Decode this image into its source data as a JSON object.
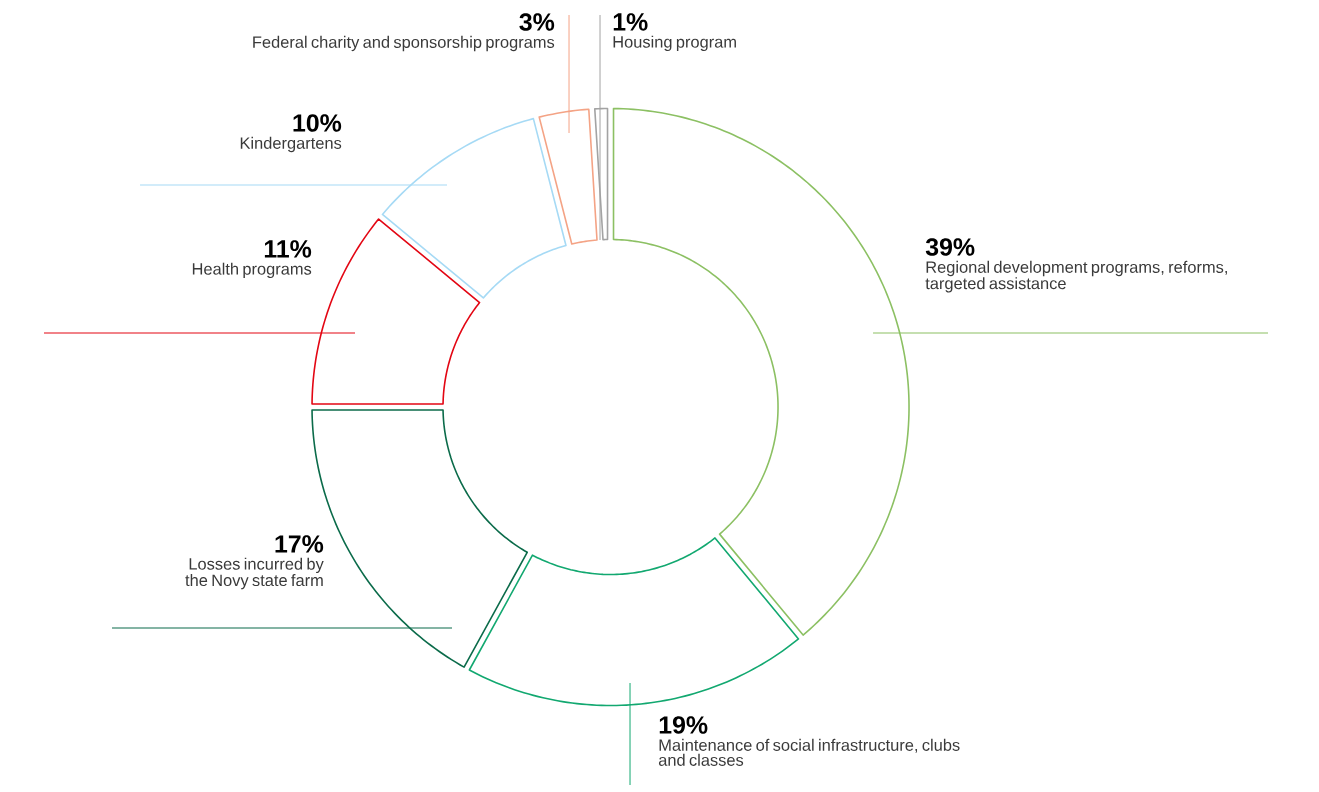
{
  "chart_data": {
    "type": "donut",
    "categories": [
      "Regional development programs, reforms, targeted assistance",
      "Maintenance of social infrastructure, clubs and classes",
      "Losses incurred by the Novy state farm",
      "Health programs",
      "Kindergartens",
      "Federal charity and sponsorship programs",
      "Housing program"
    ],
    "values": [
      39,
      19,
      17,
      11,
      10,
      3,
      1
    ],
    "colors": [
      "#8cc063",
      "#12a870",
      "#0b6b4a",
      "#e30613",
      "#a6daf5",
      "#f4a385",
      "#a3a3a3"
    ],
    "value_labels": [
      "39%",
      "19%",
      "17%",
      "11%",
      "10%",
      "3%",
      "1%"
    ]
  }
}
